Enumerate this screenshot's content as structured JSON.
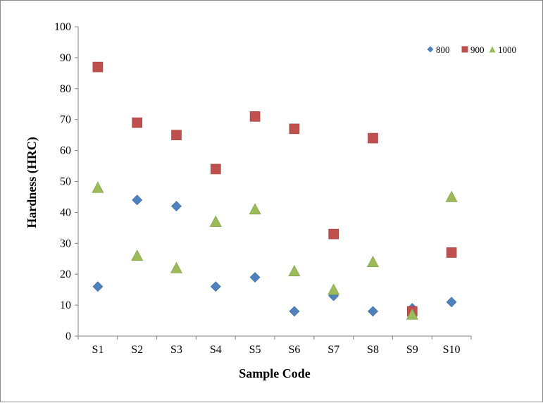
{
  "chart_data": {
    "type": "scatter",
    "categories": [
      "S1",
      "S2",
      "S3",
      "S4",
      "S5",
      "S6",
      "S7",
      "S8",
      "S9",
      "S10"
    ],
    "series": [
      {
        "name": "800",
        "values": [
          16,
          44,
          42,
          16,
          19,
          8,
          13,
          8,
          9,
          11
        ],
        "marker": "diamond",
        "color": "#4f81bd"
      },
      {
        "name": "900",
        "values": [
          87,
          69,
          65,
          54,
          71,
          67,
          33,
          64,
          8,
          27
        ],
        "marker": "square",
        "color": "#c0504d"
      },
      {
        "name": "1000",
        "values": [
          48,
          26,
          22,
          37,
          41,
          21,
          15,
          24,
          7,
          45
        ],
        "marker": "triangle",
        "color": "#9bbb59"
      }
    ],
    "xlabel": "Sample Code",
    "ylabel": "Hardness (HRC)",
    "ylim": [
      0,
      100
    ],
    "yticks": [
      0,
      10,
      20,
      30,
      40,
      50,
      60,
      70,
      80,
      90,
      100
    ],
    "grid": false,
    "legend_position": "top-right"
  }
}
